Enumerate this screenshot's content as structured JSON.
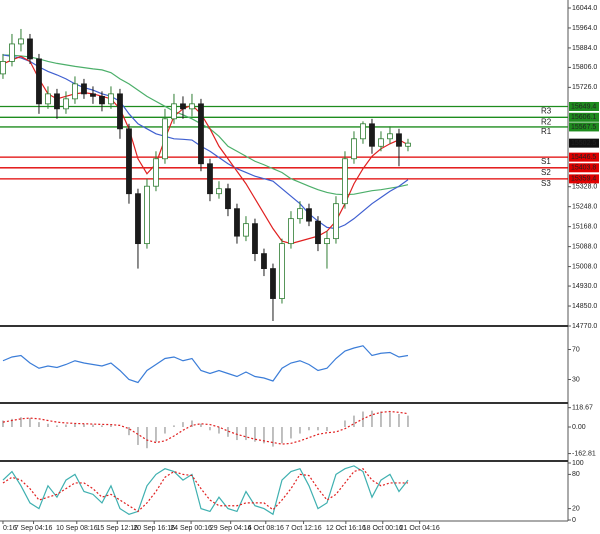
{
  "chart_data": [
    {
      "type": "candlestick",
      "up_color": "#2e7d32",
      "down_color": "#1b1b1b",
      "xlim": [
        -0.33,
        62.78
      ],
      "xticks": [
        {
          "value": 0,
          "label": "0:16"
        },
        {
          "value": 3.4,
          "label": "7 Sep 04:16"
        },
        {
          "value": 8.2,
          "label": "10 Sep 08:16"
        },
        {
          "value": 12.7,
          "label": "15 Sep 12:16"
        },
        {
          "value": 16.8,
          "label": "20 Sep 16:16"
        },
        {
          "value": 20.9,
          "label": "24 Sep 00:16"
        },
        {
          "value": 25.3,
          "label": "29 Sep 04:16"
        },
        {
          "value": 29.2,
          "label": "4 Oct 08:16"
        },
        {
          "value": 33.4,
          "label": "7 Oct 12:16"
        },
        {
          "value": 38.1,
          "label": "12 Oct 16:16"
        },
        {
          "value": 42.2,
          "label": "18 Oct 00:16"
        },
        {
          "value": 46.3,
          "label": "21 Oct 04:16"
        }
      ],
      "ylim": [
        14770,
        16076
      ],
      "yticks": [
        {
          "value": 16044,
          "label": "16044.0"
        },
        {
          "value": 15964,
          "label": "15964.0"
        },
        {
          "value": 15884,
          "label": "15884.0"
        },
        {
          "value": 15806,
          "label": "15806.0"
        },
        {
          "value": 15726,
          "label": "15726.0"
        },
        {
          "value": 15328,
          "label": "15328.0"
        },
        {
          "value": 15248,
          "label": "15248.0"
        },
        {
          "value": 15168,
          "label": "15168.0"
        },
        {
          "value": 15088,
          "label": "15088.0"
        },
        {
          "value": 15008,
          "label": "15008.0"
        },
        {
          "value": 14930,
          "label": "14930.0"
        },
        {
          "value": 14850,
          "label": "14850.0"
        },
        {
          "value": 14770,
          "label": "14770.0"
        }
      ],
      "candles": [
        [
          15780,
          15860,
          15760,
          15830
        ],
        [
          15830,
          15940,
          15810,
          15900
        ],
        [
          15900,
          15960,
          15870,
          15920
        ],
        [
          15920,
          15940,
          15820,
          15840
        ],
        [
          15840,
          15860,
          15620,
          15660
        ],
        [
          15660,
          15730,
          15640,
          15700
        ],
        [
          15700,
          15720,
          15600,
          15640
        ],
        [
          15640,
          15710,
          15620,
          15680
        ],
        [
          15680,
          15770,
          15660,
          15740
        ],
        [
          15740,
          15760,
          15680,
          15700
        ],
        [
          15700,
          15730,
          15660,
          15690
        ],
        [
          15690,
          15710,
          15630,
          15660
        ],
        [
          15660,
          15730,
          15640,
          15700
        ],
        [
          15700,
          15720,
          15520,
          15560
        ],
        [
          15560,
          15580,
          15260,
          15300
        ],
        [
          15300,
          15320,
          15000,
          15100
        ],
        [
          15100,
          15360,
          15080,
          15330
        ],
        [
          15330,
          15470,
          15310,
          15440
        ],
        [
          15440,
          15640,
          15420,
          15600
        ],
        [
          15600,
          15700,
          15580,
          15660
        ],
        [
          15660,
          15690,
          15600,
          15640
        ],
        [
          15640,
          15700,
          15610,
          15660
        ],
        [
          15660,
          15680,
          15390,
          15420
        ],
        [
          15420,
          15440,
          15270,
          15300
        ],
        [
          15300,
          15350,
          15280,
          15320
        ],
        [
          15320,
          15340,
          15210,
          15240
        ],
        [
          15240,
          15260,
          15100,
          15130
        ],
        [
          15130,
          15210,
          15110,
          15180
        ],
        [
          15180,
          15200,
          15030,
          15060
        ],
        [
          15060,
          15080,
          14970,
          15000
        ],
        [
          15000,
          15020,
          14790,
          14880
        ],
        [
          14880,
          15120,
          14860,
          15100
        ],
        [
          15100,
          15230,
          15080,
          15200
        ],
        [
          15200,
          15270,
          15180,
          15240
        ],
        [
          15240,
          15260,
          15170,
          15190
        ],
        [
          15190,
          15210,
          15070,
          15100
        ],
        [
          15100,
          15150,
          15000,
          15120
        ],
        [
          15120,
          15290,
          15100,
          15260
        ],
        [
          15260,
          15470,
          15240,
          15440
        ],
        [
          15440,
          15550,
          15420,
          15520
        ],
        [
          15520,
          15590,
          15500,
          15580
        ],
        [
          15580,
          15600,
          15460,
          15490
        ],
        [
          15490,
          15550,
          15470,
          15520
        ],
        [
          15520,
          15570,
          15500,
          15540
        ],
        [
          15540,
          15560,
          15410,
          15490
        ],
        [
          15490,
          15520,
          15470,
          15502.5
        ]
      ],
      "moving_averages": [
        {
          "color": "#4caf6a",
          "values": [
            15856,
            15855,
            15852,
            15848,
            15840,
            15830,
            15822,
            15816,
            15810,
            15805,
            15800,
            15796,
            15785,
            15760,
            15740,
            15715,
            15690,
            15670,
            15650,
            15630,
            15616,
            15600,
            15580,
            15560,
            15530,
            15490,
            15470,
            15450,
            15430,
            15416,
            15400,
            15385,
            15360,
            15345,
            15330,
            15316,
            15305,
            15298,
            15296,
            15298,
            15305,
            15312,
            15316,
            15322,
            15328,
            15336
          ]
        },
        {
          "color": "#3f5fd0",
          "values": [
            15856,
            15850,
            15844,
            15830,
            15808,
            15790,
            15776,
            15760,
            15740,
            15725,
            15715,
            15700,
            15690,
            15670,
            15620,
            15580,
            15560,
            15540,
            15530,
            15520,
            15518,
            15515,
            15490,
            15470,
            15445,
            15420,
            15400,
            15385,
            15370,
            15360,
            15350,
            15320,
            15290,
            15260,
            15220,
            15190,
            15165,
            15160,
            15175,
            15200,
            15230,
            15260,
            15285,
            15310,
            15330,
            15356
          ]
        },
        {
          "color": "#e02020",
          "values": [
            15820,
            15836,
            15850,
            15830,
            15760,
            15700,
            15680,
            15690,
            15700,
            15705,
            15700,
            15690,
            15680,
            15640,
            15560,
            15440,
            15380,
            15420,
            15520,
            15610,
            15640,
            15655,
            15620,
            15560,
            15490,
            15440,
            15390,
            15340,
            15280,
            15220,
            15160,
            15110,
            15100,
            15110,
            15120,
            15130,
            15150,
            15190,
            15260,
            15340,
            15400,
            15450,
            15480,
            15500,
            15516,
            15496
          ]
        }
      ],
      "levels": [
        {
          "name": "R3",
          "value": 15649.4,
          "color": "#1e8c1e"
        },
        {
          "name": "R2",
          "value": 15606.1,
          "color": "#1e8c1e"
        },
        {
          "name": "R1",
          "value": 15567.5,
          "color": "#1e8c1e"
        },
        {
          "name": "S1",
          "value": 15446.5,
          "color": "#e00000"
        },
        {
          "name": "S2",
          "value": 15403.8,
          "color": "#e00000"
        },
        {
          "name": "S3",
          "value": 15359.4,
          "color": "#e00000"
        }
      ]
    },
    {
      "type": "line",
      "ylim": [
        0,
        100
      ],
      "yticks": [
        70,
        30
      ],
      "series": [
        {
          "color": "#3b7dd8",
          "values": [
            55,
            60,
            62,
            52,
            45,
            48,
            46,
            50,
            55,
            52,
            50,
            48,
            52,
            42,
            30,
            26,
            42,
            50,
            58,
            60,
            55,
            58,
            42,
            38,
            42,
            38,
            34,
            40,
            34,
            32,
            28,
            45,
            52,
            55,
            50,
            42,
            45,
            58,
            68,
            72,
            75,
            62,
            65,
            66,
            60,
            62
          ]
        }
      ]
    },
    {
      "type": "macd",
      "ylim": [
        -190,
        135
      ],
      "yticks": [
        118.67,
        {
          "value": 0,
          "label": "0.00"
        },
        -162.81
      ],
      "histogram": {
        "color": "#aaaaaa",
        "values": [
          40,
          50,
          60,
          55,
          30,
          20,
          10,
          15,
          20,
          18,
          15,
          10,
          12,
          0,
          -50,
          -110,
          -130,
          -90,
          -40,
          10,
          30,
          40,
          20,
          -20,
          -40,
          -60,
          -80,
          -80,
          -90,
          -100,
          -120,
          -100,
          -70,
          -40,
          -20,
          -20,
          -25,
          0,
          40,
          70,
          95,
          100,
          95,
          90,
          80,
          70
        ]
      },
      "signal": {
        "color": "#e02020",
        "values": [
          30,
          40,
          50,
          55,
          50,
          40,
          30,
          25,
          22,
          20,
          18,
          16,
          15,
          10,
          -10,
          -45,
          -80,
          -95,
          -85,
          -55,
          -20,
          10,
          20,
          15,
          0,
          -25,
          -45,
          -60,
          -75,
          -85,
          -95,
          -105,
          -100,
          -85,
          -65,
          -45,
          -35,
          -30,
          -10,
          20,
          50,
          75,
          90,
          95,
          90,
          82
        ]
      }
    },
    {
      "type": "line",
      "ylim": [
        0,
        100
      ],
      "yticks": [
        100,
        80,
        20,
        0
      ],
      "series": [
        {
          "color": "#3fb0b0",
          "values": [
            70,
            85,
            60,
            30,
            20,
            60,
            40,
            70,
            80,
            50,
            45,
            30,
            60,
            20,
            10,
            15,
            60,
            80,
            90,
            85,
            70,
            80,
            20,
            15,
            40,
            20,
            15,
            50,
            25,
            20,
            10,
            70,
            85,
            90,
            60,
            20,
            30,
            80,
            90,
            95,
            85,
            40,
            70,
            80,
            50,
            70
          ]
        },
        {
          "color": "#e02020",
          "style": "dashed",
          "values": [
            65,
            75,
            70,
            55,
            35,
            40,
            45,
            55,
            65,
            65,
            55,
            40,
            45,
            35,
            25,
            15,
            30,
            50,
            75,
            85,
            80,
            78,
            55,
            35,
            25,
            25,
            25,
            30,
            30,
            30,
            18,
            35,
            55,
            80,
            78,
            55,
            35,
            45,
            65,
            85,
            90,
            70,
            60,
            65,
            65,
            65
          ]
        }
      ]
    }
  ]
}
